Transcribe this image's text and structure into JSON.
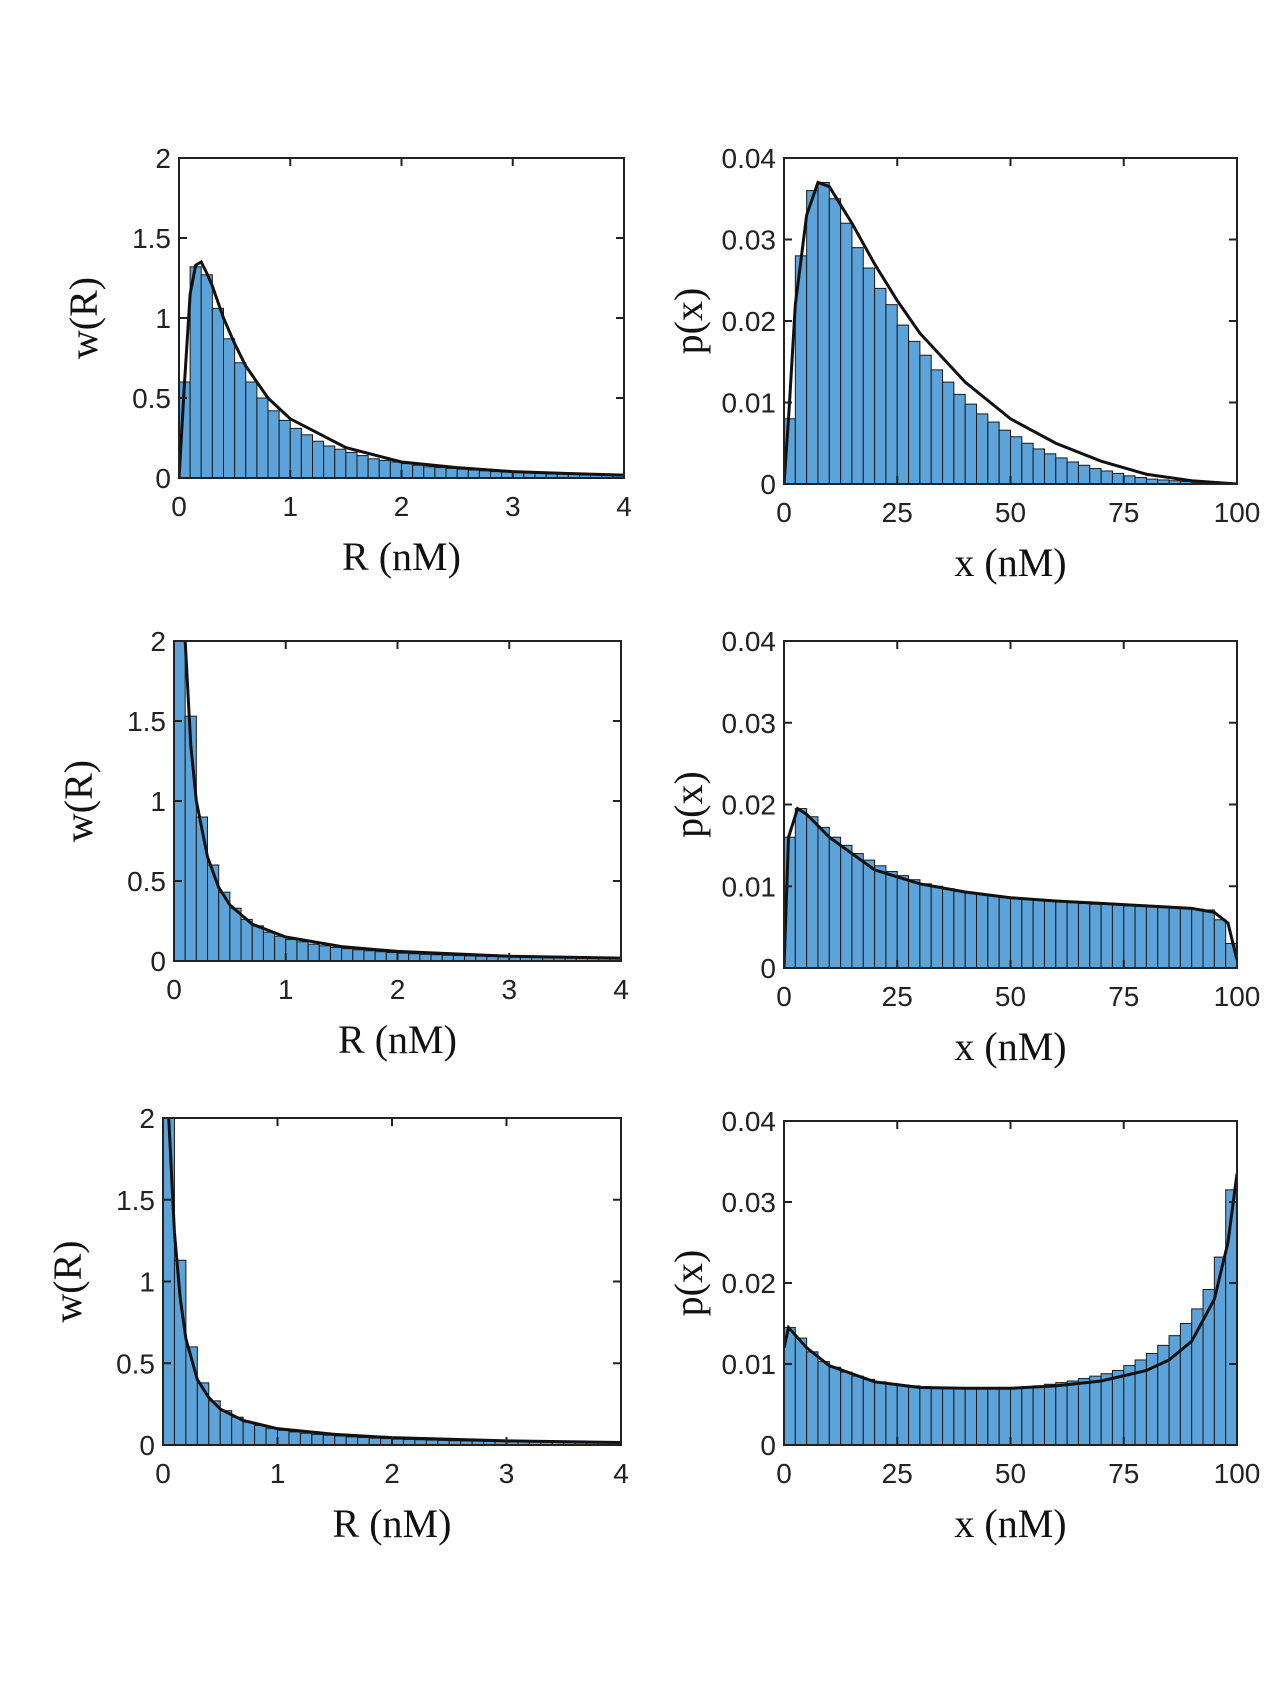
{
  "chart_data": [
    {
      "type": "histogram",
      "xlabel": "R (nM)",
      "ylabel": "w(R)",
      "color": "#5ba3d9",
      "bins": [
        0,
        0.1,
        0.2,
        0.3,
        0.4,
        0.5,
        0.6,
        0.7,
        0.8,
        0.9,
        1,
        1.1,
        1.2,
        1.3,
        1.4,
        1.5,
        1.6,
        1.7,
        1.8,
        1.9,
        2,
        2.1,
        2.2,
        2.3,
        2.4,
        2.5,
        2.6,
        2.7,
        2.8,
        2.9,
        3,
        3.1,
        3.2,
        3.3,
        3.4,
        3.5,
        3.6,
        3.7,
        3.8,
        3.9,
        4
      ],
      "counts": [
        0.6,
        1.32,
        1.27,
        1.06,
        0.87,
        0.72,
        0.6,
        0.5,
        0.42,
        0.36,
        0.31,
        0.27,
        0.23,
        0.2,
        0.18,
        0.16,
        0.14,
        0.12,
        0.11,
        0.1,
        0.09,
        0.08,
        0.07,
        0.065,
        0.06,
        0.055,
        0.05,
        0.045,
        0.04,
        0.037,
        0.034,
        0.031,
        0.028,
        0.026,
        0.024,
        0.022,
        0.02,
        0.018,
        0.017,
        0.016
      ],
      "curve": {
        "color": "#111111",
        "x": [
          0,
          0.05,
          0.1,
          0.15,
          0.2,
          0.25,
          0.3,
          0.4,
          0.5,
          0.6,
          0.8,
          1,
          1.5,
          2,
          2.5,
          3,
          3.5,
          4
        ],
        "y": [
          0,
          0.6,
          1.15,
          1.33,
          1.35,
          1.28,
          1.2,
          1.0,
          0.84,
          0.7,
          0.5,
          0.37,
          0.19,
          0.1,
          0.065,
          0.04,
          0.028,
          0.018
        ]
      },
      "xlim": [
        0,
        4
      ],
      "ylim": [
        0,
        2
      ],
      "xticks": [
        0,
        1,
        2,
        3,
        4
      ],
      "yticks": [
        0,
        0.5,
        1,
        1.5,
        2
      ]
    },
    {
      "type": "histogram",
      "xlabel": "x (nM)",
      "ylabel": "p(x)",
      "color": "#5ba3d9",
      "bins": [
        0,
        2.5,
        5,
        7.5,
        10,
        12.5,
        15,
        17.5,
        20,
        22.5,
        25,
        27.5,
        30,
        32.5,
        35,
        37.5,
        40,
        42.5,
        45,
        47.5,
        50,
        52.5,
        55,
        57.5,
        60,
        62.5,
        65,
        67.5,
        70,
        72.5,
        75,
        77.5,
        80,
        82.5,
        85,
        87.5,
        90,
        92.5,
        95,
        97.5,
        100
      ],
      "counts": [
        0.008,
        0.028,
        0.036,
        0.037,
        0.035,
        0.032,
        0.029,
        0.0265,
        0.024,
        0.022,
        0.0195,
        0.0175,
        0.0158,
        0.014,
        0.0125,
        0.011,
        0.0098,
        0.0086,
        0.0076,
        0.0066,
        0.0058,
        0.005,
        0.0043,
        0.0037,
        0.0032,
        0.0027,
        0.0023,
        0.0019,
        0.0016,
        0.0013,
        0.001,
        0.0008,
        0.0006,
        0.0005,
        0.0004,
        0.0003,
        0.0002,
        0.0001,
        0.0001,
        0
      ],
      "curve": {
        "color": "#111111",
        "x": [
          0,
          1,
          2.5,
          5,
          7.5,
          10,
          15,
          20,
          25,
          30,
          40,
          50,
          60,
          70,
          80,
          90,
          100
        ],
        "y": [
          0,
          0.008,
          0.022,
          0.033,
          0.037,
          0.0365,
          0.032,
          0.027,
          0.0225,
          0.0185,
          0.0125,
          0.008,
          0.005,
          0.0028,
          0.0012,
          0.0004,
          0
        ]
      },
      "xlim": [
        0,
        100
      ],
      "ylim": [
        0,
        0.04
      ],
      "xticks": [
        0,
        25,
        50,
        75,
        100
      ],
      "yticks": [
        0,
        0.01,
        0.02,
        0.03,
        0.04
      ]
    },
    {
      "type": "histogram",
      "xlabel": "R (nM)",
      "ylabel": "w(R)",
      "color": "#5ba3d9",
      "bins": [
        0,
        0.1,
        0.2,
        0.3,
        0.4,
        0.5,
        0.6,
        0.7,
        0.8,
        0.9,
        1,
        1.1,
        1.2,
        1.3,
        1.4,
        1.5,
        1.6,
        1.7,
        1.8,
        1.9,
        2,
        2.1,
        2.2,
        2.3,
        2.4,
        2.5,
        2.6,
        2.7,
        2.8,
        2.9,
        3,
        3.1,
        3.2,
        3.3,
        3.4,
        3.5,
        3.6,
        3.7,
        3.8,
        3.9,
        4
      ],
      "counts": [
        2,
        1.53,
        0.9,
        0.6,
        0.43,
        0.33,
        0.26,
        0.22,
        0.18,
        0.155,
        0.135,
        0.12,
        0.105,
        0.095,
        0.085,
        0.077,
        0.07,
        0.064,
        0.058,
        0.053,
        0.049,
        0.045,
        0.042,
        0.039,
        0.036,
        0.034,
        0.032,
        0.03,
        0.028,
        0.026,
        0.025,
        0.023,
        0.022,
        0.021,
        0.02,
        0.019,
        0.018,
        0.017,
        0.016,
        0.015
      ],
      "curve": {
        "color": "#111111",
        "x": [
          0.1,
          0.15,
          0.2,
          0.3,
          0.4,
          0.5,
          0.7,
          1,
          1.5,
          2,
          3,
          4
        ],
        "y": [
          2,
          1.35,
          1.0,
          0.65,
          0.46,
          0.35,
          0.23,
          0.15,
          0.09,
          0.06,
          0.03,
          0.018
        ]
      },
      "xlim": [
        0,
        4
      ],
      "ylim": [
        0,
        2
      ],
      "xticks": [
        0,
        1,
        2,
        3,
        4
      ],
      "yticks": [
        0,
        0.5,
        1,
        1.5,
        2
      ]
    },
    {
      "type": "histogram",
      "xlabel": "x (nM)",
      "ylabel": "p(x)",
      "color": "#5ba3d9",
      "bins": [
        0,
        2.5,
        5,
        7.5,
        10,
        12.5,
        15,
        17.5,
        20,
        22.5,
        25,
        27.5,
        30,
        32.5,
        35,
        37.5,
        40,
        42.5,
        45,
        47.5,
        50,
        52.5,
        55,
        57.5,
        60,
        62.5,
        65,
        67.5,
        70,
        72.5,
        75,
        77.5,
        80,
        82.5,
        85,
        87.5,
        90,
        92.5,
        95,
        97.5,
        100
      ],
      "counts": [
        0.016,
        0.0195,
        0.0185,
        0.0172,
        0.016,
        0.015,
        0.014,
        0.0132,
        0.0125,
        0.0118,
        0.0113,
        0.0108,
        0.0103,
        0.01,
        0.0097,
        0.0094,
        0.0092,
        0.009,
        0.0088,
        0.0086,
        0.0085,
        0.0084,
        0.0083,
        0.0082,
        0.0081,
        0.008,
        0.0079,
        0.0078,
        0.0078,
        0.0077,
        0.0076,
        0.0076,
        0.0075,
        0.0075,
        0.0074,
        0.0073,
        0.0072,
        0.0071,
        0.0059,
        0.003
      ],
      "curve": {
        "color": "#111111",
        "x": [
          0,
          1,
          3,
          5,
          10,
          20,
          30,
          40,
          50,
          60,
          70,
          80,
          90,
          95,
          98,
          100
        ],
        "y": [
          0,
          0.016,
          0.0195,
          0.0188,
          0.016,
          0.012,
          0.0103,
          0.0093,
          0.0086,
          0.0082,
          0.0079,
          0.0076,
          0.0073,
          0.0068,
          0.0055,
          0.001
        ]
      },
      "xlim": [
        0,
        100
      ],
      "ylim": [
        0,
        0.04
      ],
      "xticks": [
        0,
        25,
        50,
        75,
        100
      ],
      "yticks": [
        0,
        0.01,
        0.02,
        0.03,
        0.04
      ]
    },
    {
      "type": "histogram",
      "xlabel": "R (nM)",
      "ylabel": "w(R)",
      "color": "#5ba3d9",
      "bins": [
        0,
        0.1,
        0.2,
        0.3,
        0.4,
        0.5,
        0.6,
        0.7,
        0.8,
        0.9,
        1,
        1.1,
        1.2,
        1.3,
        1.4,
        1.5,
        1.6,
        1.7,
        1.8,
        1.9,
        2,
        2.1,
        2.2,
        2.3,
        2.4,
        2.5,
        2.6,
        2.7,
        2.8,
        2.9,
        3,
        3.1,
        3.2,
        3.3,
        3.4,
        3.5,
        3.6,
        3.7,
        3.8,
        3.9,
        4
      ],
      "counts": [
        2,
        1.13,
        0.6,
        0.38,
        0.27,
        0.21,
        0.17,
        0.14,
        0.12,
        0.1,
        0.09,
        0.08,
        0.072,
        0.065,
        0.06,
        0.055,
        0.05,
        0.046,
        0.042,
        0.039,
        0.036,
        0.034,
        0.032,
        0.03,
        0.028,
        0.026,
        0.025,
        0.024,
        0.023,
        0.022,
        0.021,
        0.02,
        0.019,
        0.018,
        0.017,
        0.016,
        0.015,
        0.014,
        0.013,
        0.012
      ],
      "curve": {
        "color": "#111111",
        "x": [
          0.05,
          0.1,
          0.15,
          0.2,
          0.3,
          0.4,
          0.5,
          0.7,
          1,
          1.5,
          2,
          3,
          4
        ],
        "y": [
          2,
          1.3,
          0.9,
          0.65,
          0.4,
          0.29,
          0.22,
          0.15,
          0.1,
          0.065,
          0.045,
          0.025,
          0.015
        ]
      },
      "xlim": [
        0,
        4
      ],
      "ylim": [
        0,
        2
      ],
      "xticks": [
        0,
        1,
        2,
        3,
        4
      ],
      "yticks": [
        0,
        0.5,
        1,
        1.5,
        2
      ]
    },
    {
      "type": "histogram",
      "xlabel": "x (nM)",
      "ylabel": "p(x)",
      "color": "#5ba3d9",
      "bins": [
        0,
        2.5,
        5,
        7.5,
        10,
        12.5,
        15,
        17.5,
        20,
        22.5,
        25,
        27.5,
        30,
        32.5,
        35,
        37.5,
        40,
        42.5,
        45,
        47.5,
        50,
        52.5,
        55,
        57.5,
        60,
        62.5,
        65,
        67.5,
        70,
        72.5,
        75,
        77.5,
        80,
        82.5,
        85,
        87.5,
        90,
        92.5,
        95,
        97.5,
        100
      ],
      "counts": [
        0.0145,
        0.0132,
        0.0115,
        0.0103,
        0.0096,
        0.009,
        0.0085,
        0.0081,
        0.0078,
        0.0076,
        0.0074,
        0.0073,
        0.0072,
        0.0071,
        0.0071,
        0.007,
        0.007,
        0.007,
        0.007,
        0.0071,
        0.0071,
        0.0072,
        0.0073,
        0.0075,
        0.0077,
        0.0079,
        0.0082,
        0.0085,
        0.0088,
        0.0092,
        0.0098,
        0.0105,
        0.0113,
        0.0123,
        0.0135,
        0.015,
        0.0168,
        0.0192,
        0.0232,
        0.0315
      ],
      "curve": {
        "color": "#111111",
        "x": [
          0,
          1,
          5,
          10,
          20,
          30,
          40,
          50,
          60,
          70,
          80,
          85,
          90,
          95,
          98,
          100
        ],
        "y": [
          0.012,
          0.0145,
          0.012,
          0.0098,
          0.0078,
          0.0071,
          0.007,
          0.007,
          0.0073,
          0.0079,
          0.0092,
          0.0105,
          0.0128,
          0.018,
          0.025,
          0.0335
        ]
      },
      "xlim": [
        0,
        100
      ],
      "ylim": [
        0,
        0.04
      ],
      "xticks": [
        0,
        25,
        50,
        75,
        100
      ],
      "yticks": [
        0,
        0.01,
        0.02,
        0.03,
        0.04
      ]
    }
  ]
}
